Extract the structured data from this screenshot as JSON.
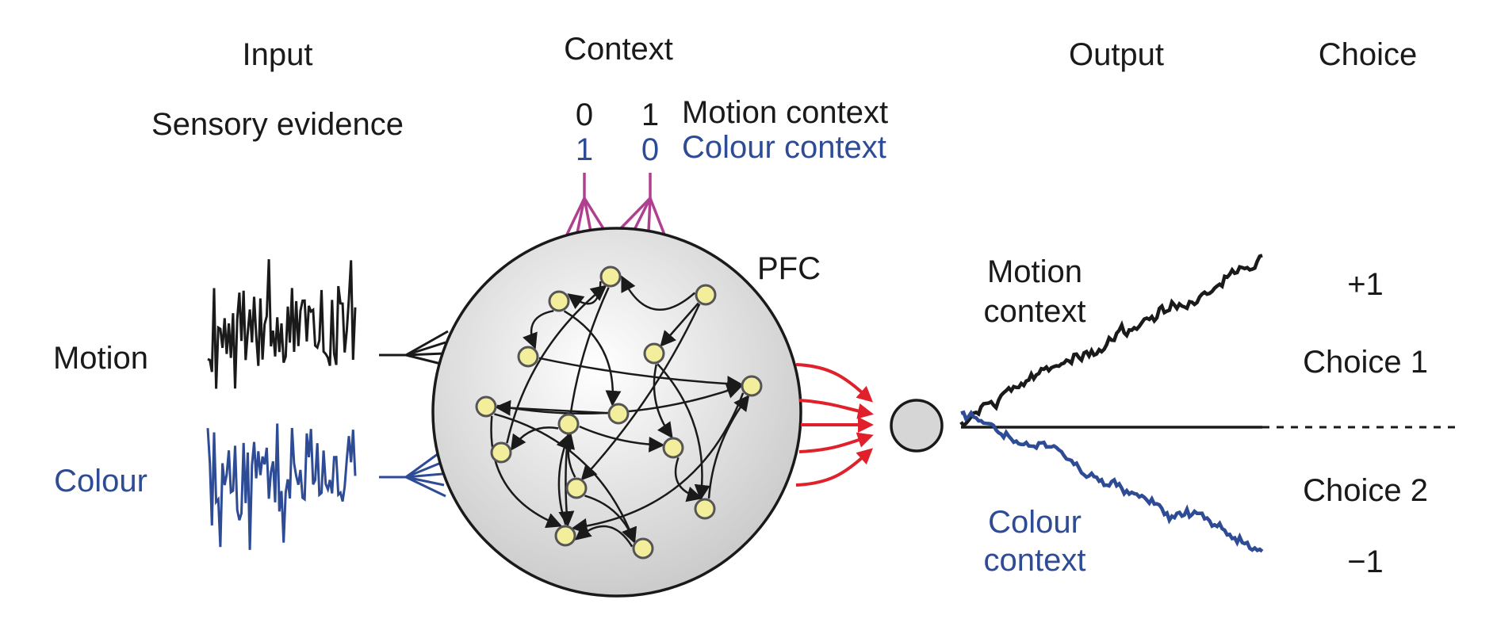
{
  "headers": {
    "input": "Input",
    "context": "Context",
    "output": "Output",
    "choice": "Choice"
  },
  "input": {
    "sensory_label": "Sensory evidence",
    "motion_label": "Motion",
    "colour_label": "Colour"
  },
  "context": {
    "motion_row": {
      "v1": "0",
      "v2": "1",
      "label": "Motion context"
    },
    "colour_row": {
      "v1": "1",
      "v2": "0",
      "label": "Colour context"
    }
  },
  "network": {
    "label": "PFC"
  },
  "output": {
    "motion_context_line1": "Motion",
    "motion_context_line2": "context",
    "colour_context_line1": "Colour",
    "colour_context_line2": "context"
  },
  "choice": {
    "plus": "+1",
    "choice1": "Choice 1",
    "choice2": "Choice 2",
    "minus": "−1"
  },
  "colors": {
    "black": "#1a1a1a",
    "blue": "#2e4b96",
    "magenta": "#b0408f",
    "red": "#e0202a",
    "node_fill": "#f3ee9c",
    "node_stroke": "#555555",
    "circle_light": "#ffffff",
    "circle_dark": "#cfcfcf"
  }
}
